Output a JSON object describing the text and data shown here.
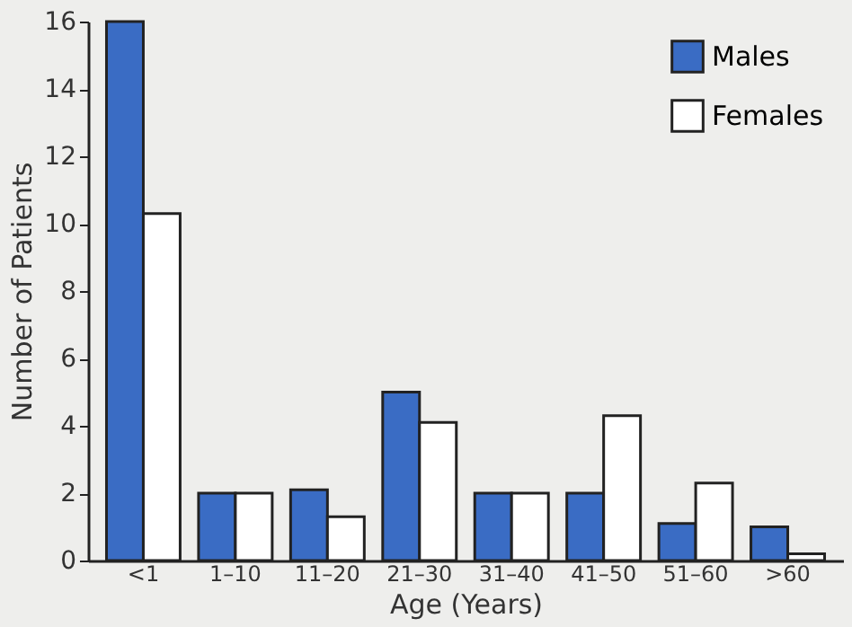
{
  "chart_data": {
    "type": "bar",
    "xlabel": "Age (Years)",
    "ylabel": "Number of Patients",
    "categories": [
      "<1",
      "1–10",
      "11–20",
      "21–30",
      "31–40",
      "41–50",
      "51–60",
      ">60"
    ],
    "series": [
      {
        "name": "Males",
        "color": "#3a6cc4",
        "values": [
          16,
          2,
          2.1,
          5,
          2,
          2,
          1.1,
          1
        ]
      },
      {
        "name": "Females",
        "color": "#ffffff",
        "values": [
          10.3,
          2,
          1.3,
          4.1,
          2,
          4.3,
          2.3,
          0.2
        ]
      }
    ],
    "ylim": [
      0,
      16
    ],
    "yticks": [
      0,
      2,
      4,
      6,
      8,
      10,
      12,
      14,
      16
    ],
    "grid": false,
    "legend": "top right"
  }
}
